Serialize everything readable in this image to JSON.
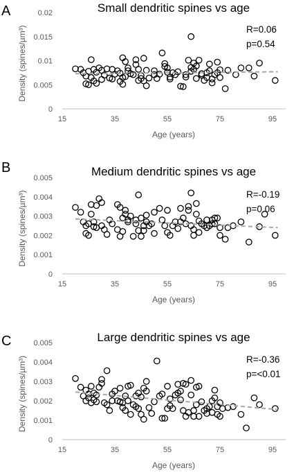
{
  "chart_data": [
    {
      "type": "scatter",
      "panel": "A",
      "title": "Small dendritic spines vs age",
      "xlabel": "Age (years)",
      "ylabel": "Density (spines/µm³)",
      "xlim": [
        15,
        100
      ],
      "ylim": [
        0,
        0.02
      ],
      "xticks": [
        "15",
        "35",
        "55",
        "75",
        "95"
      ],
      "yticks": [
        "0",
        "0.005",
        "0.01",
        "0.015",
        "0.02"
      ],
      "stats": [
        "R=0.06",
        "p=0.54"
      ],
      "trend": [
        [
          20,
          0.0073
        ],
        [
          97,
          0.0077
        ]
      ],
      "points": [
        [
          20,
          0.0083
        ],
        [
          22,
          0.0082
        ],
        [
          23,
          0.0075
        ],
        [
          24,
          0.0068
        ],
        [
          24,
          0.0052
        ],
        [
          25,
          0.0078
        ],
        [
          25,
          0.005
        ],
        [
          26,
          0.0102
        ],
        [
          26,
          0.0065
        ],
        [
          27,
          0.0082
        ],
        [
          27,
          0.0058
        ],
        [
          28,
          0.0053
        ],
        [
          28,
          0.0076
        ],
        [
          29,
          0.0085
        ],
        [
          30,
          0.0061
        ],
        [
          30,
          0.008
        ],
        [
          31,
          0.007
        ],
        [
          32,
          0.0083
        ],
        [
          33,
          0.0064
        ],
        [
          34,
          0.0082
        ],
        [
          34,
          0.0062
        ],
        [
          35,
          0.0072
        ],
        [
          36,
          0.0079
        ],
        [
          37,
          0.0074
        ],
        [
          37,
          0.0057
        ],
        [
          38,
          0.0051
        ],
        [
          38,
          0.0065
        ],
        [
          38,
          0.0106
        ],
        [
          39,
          0.0098
        ],
        [
          39,
          0.0067
        ],
        [
          40,
          0.0079
        ],
        [
          40,
          0.0085
        ],
        [
          41,
          0.0073
        ],
        [
          42,
          0.0071
        ],
        [
          43,
          0.0102
        ],
        [
          43,
          0.0092
        ],
        [
          44,
          0.0082
        ],
        [
          44,
          0.0059
        ],
        [
          45,
          0.0069
        ],
        [
          45,
          0.0063
        ],
        [
          46,
          0.0058
        ],
        [
          46,
          0.0105
        ],
        [
          47,
          0.008
        ],
        [
          47,
          0.0048
        ],
        [
          48,
          0.0064
        ],
        [
          50,
          0.0071
        ],
        [
          50,
          0.0079
        ],
        [
          51,
          0.0063
        ],
        [
          52,
          0.0072
        ],
        [
          53,
          0.0116
        ],
        [
          54,
          0.0088
        ],
        [
          54,
          0.0094
        ],
        [
          55,
          0.0085
        ],
        [
          55,
          0.0076
        ],
        [
          56,
          0.0066
        ],
        [
          56,
          0.0062
        ],
        [
          57,
          0.0075
        ],
        [
          58,
          0.0071
        ],
        [
          59,
          0.0077
        ],
        [
          60,
          0.0047
        ],
        [
          61,
          0.0046
        ],
        [
          62,
          0.0071
        ],
        [
          62,
          0.0066
        ],
        [
          63,
          0.0101
        ],
        [
          64,
          0.015
        ],
        [
          64,
          0.0086
        ],
        [
          64,
          0.0078
        ],
        [
          65,
          0.0082
        ],
        [
          65,
          0.0095
        ],
        [
          66,
          0.0089
        ],
        [
          66,
          0.0063
        ],
        [
          67,
          0.0101
        ],
        [
          68,
          0.0073
        ],
        [
          68,
          0.007
        ],
        [
          69,
          0.0059
        ],
        [
          70,
          0.0075
        ],
        [
          70,
          0.0065
        ],
        [
          71,
          0.0093
        ],
        [
          71,
          0.0079
        ],
        [
          72,
          0.0054
        ],
        [
          72,
          0.0062
        ],
        [
          73,
          0.0071
        ],
        [
          74,
          0.0075
        ],
        [
          74,
          0.0097
        ],
        [
          75,
          0.0081
        ],
        [
          75,
          0.0065
        ],
        [
          77,
          0.0042
        ],
        [
          78,
          0.008
        ],
        [
          81,
          0.0071
        ],
        [
          83,
          0.0085
        ],
        [
          86,
          0.0085
        ],
        [
          88,
          0.0068
        ],
        [
          90,
          0.0095
        ],
        [
          96,
          0.0059
        ]
      ]
    },
    {
      "type": "scatter",
      "panel": "B",
      "title": "Medium dendritic spines vs age",
      "xlabel": "Age (years)",
      "ylabel": "Density (spines/µm³)",
      "xlim": [
        15,
        100
      ],
      "ylim": [
        0,
        0.005
      ],
      "xticks": [
        "15",
        "35",
        "55",
        "75",
        "95"
      ],
      "yticks": [
        "0",
        "0.001",
        "0.002",
        "0.003",
        "0.004",
        "0.005"
      ],
      "stats": [
        "R=-0.19",
        "p=0.06"
      ],
      "trend": [
        [
          20,
          0.00285
        ],
        [
          97,
          0.0024
        ]
      ],
      "points": [
        [
          20,
          0.00345
        ],
        [
          22,
          0.0032
        ],
        [
          23,
          0.0027
        ],
        [
          24,
          0.0025
        ],
        [
          24,
          0.0021
        ],
        [
          25,
          0.0026
        ],
        [
          25,
          0.002
        ],
        [
          26,
          0.0036
        ],
        [
          26,
          0.0031
        ],
        [
          27,
          0.0027
        ],
        [
          27,
          0.00245
        ],
        [
          28,
          0.00355
        ],
        [
          28,
          0.0024
        ],
        [
          29,
          0.0039
        ],
        [
          30,
          0.0037
        ],
        [
          30,
          0.0025
        ],
        [
          31,
          0.0023
        ],
        [
          32,
          0.00205
        ],
        [
          33,
          0.0028
        ],
        [
          34,
          0.0026
        ],
        [
          36,
          0.0036
        ],
        [
          36,
          0.0023
        ],
        [
          37,
          0.00345
        ],
        [
          37,
          0.00195
        ],
        [
          38,
          0.0022
        ],
        [
          38,
          0.0029
        ],
        [
          39,
          0.0033
        ],
        [
          39,
          0.0031
        ],
        [
          40,
          0.0028
        ],
        [
          40,
          0.0027
        ],
        [
          41,
          0.003
        ],
        [
          42,
          0.00195
        ],
        [
          43,
          0.0028
        ],
        [
          43,
          0.0026
        ],
        [
          44,
          0.0041
        ],
        [
          44,
          0.00225
        ],
        [
          45,
          0.0029
        ],
        [
          45,
          0.00195
        ],
        [
          46,
          0.0025
        ],
        [
          46,
          0.00225
        ],
        [
          47,
          0.00305
        ],
        [
          47,
          0.0027
        ],
        [
          48,
          0.0025
        ],
        [
          49,
          0.0026
        ],
        [
          50,
          0.0021
        ],
        [
          50,
          0.0032
        ],
        [
          52,
          0.0034
        ],
        [
          53,
          0.0028
        ],
        [
          54,
          0.0025
        ],
        [
          55,
          0.0033
        ],
        [
          55,
          0.00215
        ],
        [
          56,
          0.002
        ],
        [
          57,
          0.0025
        ],
        [
          58,
          0.0027
        ],
        [
          59,
          0.00235
        ],
        [
          60,
          0.0034
        ],
        [
          60,
          0.0027
        ],
        [
          61,
          0.0029
        ],
        [
          62,
          0.0026
        ],
        [
          63,
          0.0035
        ],
        [
          63,
          0.0033
        ],
        [
          64,
          0.0042
        ],
        [
          64,
          0.0025
        ],
        [
          65,
          0.002
        ],
        [
          65,
          0.0023
        ],
        [
          66,
          0.0031
        ],
        [
          66,
          0.00365
        ],
        [
          67,
          0.00275
        ],
        [
          67,
          0.00215
        ],
        [
          68,
          0.0026
        ],
        [
          69,
          0.0025
        ],
        [
          70,
          0.0028
        ],
        [
          70,
          0.0024
        ],
        [
          71,
          0.0025
        ],
        [
          72,
          0.0026
        ],
        [
          72,
          0.0028
        ],
        [
          73,
          0.0029
        ],
        [
          73,
          0.0026
        ],
        [
          74,
          0.0029
        ],
        [
          75,
          0.002
        ],
        [
          75,
          0.0024
        ],
        [
          77,
          0.0018
        ],
        [
          78,
          0.0024
        ],
        [
          80,
          0.0025
        ],
        [
          83,
          0.0027
        ],
        [
          86,
          0.00165
        ],
        [
          90,
          0.00245
        ],
        [
          92,
          0.0031
        ],
        [
          96,
          0.002
        ]
      ]
    },
    {
      "type": "scatter",
      "panel": "C",
      "title": "Large dendritic spines vs age",
      "xlabel": "Age (years)",
      "ylabel": "Density (spines/µm³)",
      "xlim": [
        15,
        100
      ],
      "ylim": [
        0,
        0.005
      ],
      "xticks": [
        "15",
        "35",
        "55",
        "75",
        "95"
      ],
      "yticks": [
        "0",
        "0.001",
        "0.002",
        "0.003",
        "0.004",
        "0.005"
      ],
      "stats": [
        "R=-0.36",
        "p=<0.01"
      ],
      "trend": [
        [
          20,
          0.00245
        ],
        [
          97,
          0.00155
        ]
      ],
      "points": [
        [
          20,
          0.00315
        ],
        [
          22,
          0.0027
        ],
        [
          23,
          0.00225
        ],
        [
          24,
          0.002
        ],
        [
          24,
          0.00255
        ],
        [
          25,
          0.00215
        ],
        [
          25,
          0.00235
        ],
        [
          26,
          0.0019
        ],
        [
          26,
          0.00275
        ],
        [
          27,
          0.0024
        ],
        [
          27,
          0.00205
        ],
        [
          28,
          0.0023
        ],
        [
          28,
          0.00195
        ],
        [
          29,
          0.0027
        ],
        [
          30,
          0.0029
        ],
        [
          30,
          0.0031
        ],
        [
          31,
          0.0019
        ],
        [
          32,
          0.00355
        ],
        [
          32,
          0.0018
        ],
        [
          33,
          0.0015
        ],
        [
          34,
          0.00235
        ],
        [
          34,
          0.002
        ],
        [
          35,
          0.0025
        ],
        [
          36,
          0.002
        ],
        [
          37,
          0.00265
        ],
        [
          37,
          0.00195
        ],
        [
          38,
          0.0019
        ],
        [
          38,
          0.00165
        ],
        [
          39,
          0.00225
        ],
        [
          39,
          0.0015
        ],
        [
          40,
          0.00275
        ],
        [
          40,
          0.002
        ],
        [
          41,
          0.0028
        ],
        [
          41,
          0.0013
        ],
        [
          42,
          0.0018
        ],
        [
          43,
          0.00225
        ],
        [
          43,
          0.0017
        ],
        [
          44,
          0.0024
        ],
        [
          44,
          0.0016
        ],
        [
          45,
          0.0013
        ],
        [
          45,
          0.0022
        ],
        [
          46,
          0.00105
        ],
        [
          46,
          0.00265
        ],
        [
          47,
          0.003
        ],
        [
          47,
          0.0025
        ],
        [
          48,
          0.00165
        ],
        [
          49,
          0.00135
        ],
        [
          50,
          0.00195
        ],
        [
          51,
          0.00405
        ],
        [
          52,
          0.00225
        ],
        [
          53,
          0.0011
        ],
        [
          53,
          0.00235
        ],
        [
          54,
          0.0011
        ],
        [
          55,
          0.0016
        ],
        [
          55,
          0.00275
        ],
        [
          56,
          0.00175
        ],
        [
          56,
          0.0021
        ],
        [
          57,
          0.0016
        ],
        [
          58,
          0.0023
        ],
        [
          59,
          0.00285
        ],
        [
          59,
          0.0024
        ],
        [
          60,
          0.00205
        ],
        [
          60,
          0.0025
        ],
        [
          61,
          0.0029
        ],
        [
          61,
          0.0015
        ],
        [
          62,
          0.00285
        ],
        [
          62,
          0.0012
        ],
        [
          63,
          0.0014
        ],
        [
          64,
          0.00305
        ],
        [
          64,
          0.0023
        ],
        [
          65,
          0.0015
        ],
        [
          65,
          0.0012
        ],
        [
          66,
          0.0027
        ],
        [
          66,
          0.0018
        ],
        [
          67,
          0.00275
        ],
        [
          67,
          0.0012
        ],
        [
          68,
          0.00195
        ],
        [
          69,
          0.0015
        ],
        [
          70,
          0.0016
        ],
        [
          70,
          0.00135
        ],
        [
          71,
          0.0017
        ],
        [
          72,
          0.002
        ],
        [
          72,
          0.0014
        ],
        [
          73,
          0.00255
        ],
        [
          73,
          0.00215
        ],
        [
          74,
          0.0013
        ],
        [
          74,
          0.0017
        ],
        [
          75,
          0.0012
        ],
        [
          75,
          0.0019
        ],
        [
          76,
          0.0016
        ],
        [
          78,
          0.00165
        ],
        [
          80,
          0.0017
        ],
        [
          83,
          0.0013
        ],
        [
          85,
          0.0006
        ],
        [
          88,
          0.00215
        ],
        [
          90,
          0.0018
        ],
        [
          96,
          0.0016
        ]
      ]
    }
  ]
}
